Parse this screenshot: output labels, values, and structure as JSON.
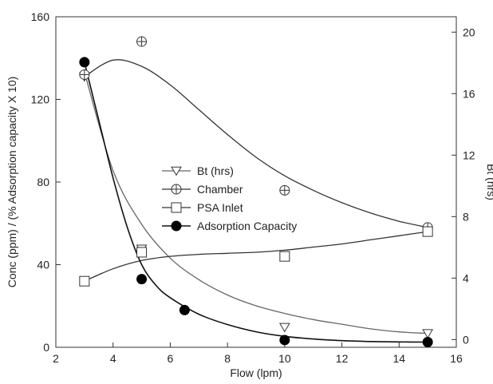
{
  "chart_data": {
    "type": "scatter",
    "xlabel": "Flow (lpm)",
    "ylabel_left": "Conc (ppm) / (% Adsorption capacity X 10)",
    "ylabel_right": "Bt (hrs)",
    "xlim": [
      2,
      16
    ],
    "ylim_left": [
      0,
      160
    ],
    "ylim_right": [
      -0.5,
      21
    ],
    "x_ticks": [
      2,
      4,
      6,
      8,
      10,
      12,
      14,
      16
    ],
    "y_ticks_left": [
      0,
      40,
      80,
      120,
      160
    ],
    "y_ticks_right": [
      0,
      4,
      8,
      12,
      16,
      20
    ],
    "legend_position": "center",
    "series": [
      {
        "name": "Bt (hrs)",
        "axis": "right",
        "marker": "triangle-down-open",
        "x": [
          3,
          5,
          10,
          15
        ],
        "y": [
          17.1,
          5.9,
          0.8,
          0.4
        ],
        "curve": {
          "x": [
            3,
            4,
            5,
            6,
            7,
            8,
            9,
            10,
            11,
            12,
            13,
            14,
            15
          ],
          "y": [
            17.4,
            11.0,
            7.5,
            5.3,
            3.9,
            2.9,
            2.2,
            1.7,
            1.3,
            1.0,
            0.7,
            0.5,
            0.4
          ]
        }
      },
      {
        "name": "Chamber",
        "axis": "left",
        "marker": "circle-plus",
        "x": [
          3,
          5,
          10,
          15
        ],
        "y": [
          132,
          148,
          76,
          58
        ],
        "curve": {
          "x": [
            3,
            4,
            5,
            6,
            7,
            8,
            9,
            10,
            11,
            12,
            13,
            14,
            15
          ],
          "y": [
            131,
            139,
            136,
            127,
            115,
            103,
            92,
            83,
            76,
            70,
            65,
            61,
            58
          ]
        }
      },
      {
        "name": "PSA Inlet",
        "axis": "left",
        "marker": "square-open",
        "x": [
          3,
          5,
          10,
          15
        ],
        "y": [
          32,
          46,
          44,
          56
        ],
        "curve": {
          "x": [
            3,
            4,
            5,
            6,
            7,
            8,
            9,
            10,
            11,
            12,
            13,
            14,
            15
          ],
          "y": [
            32,
            38,
            42,
            44,
            45,
            45.5,
            46,
            47,
            48.5,
            50,
            52,
            54,
            56
          ]
        }
      },
      {
        "name": "Adsorption Capacity",
        "axis": "left",
        "marker": "circle-filled",
        "x": [
          3,
          5,
          6.5,
          10,
          15
        ],
        "y": [
          138,
          33,
          18,
          3.5,
          2.5
        ],
        "curve": {
          "x": [
            3,
            3.5,
            4,
            4.5,
            5,
            5.5,
            6,
            7,
            8,
            9,
            10,
            11,
            12,
            13,
            14,
            15
          ],
          "y": [
            138,
            110,
            82,
            58,
            40,
            30,
            24,
            16,
            11,
            7.5,
            5.3,
            4.0,
            3.2,
            2.8,
            2.6,
            2.5
          ]
        }
      }
    ]
  }
}
